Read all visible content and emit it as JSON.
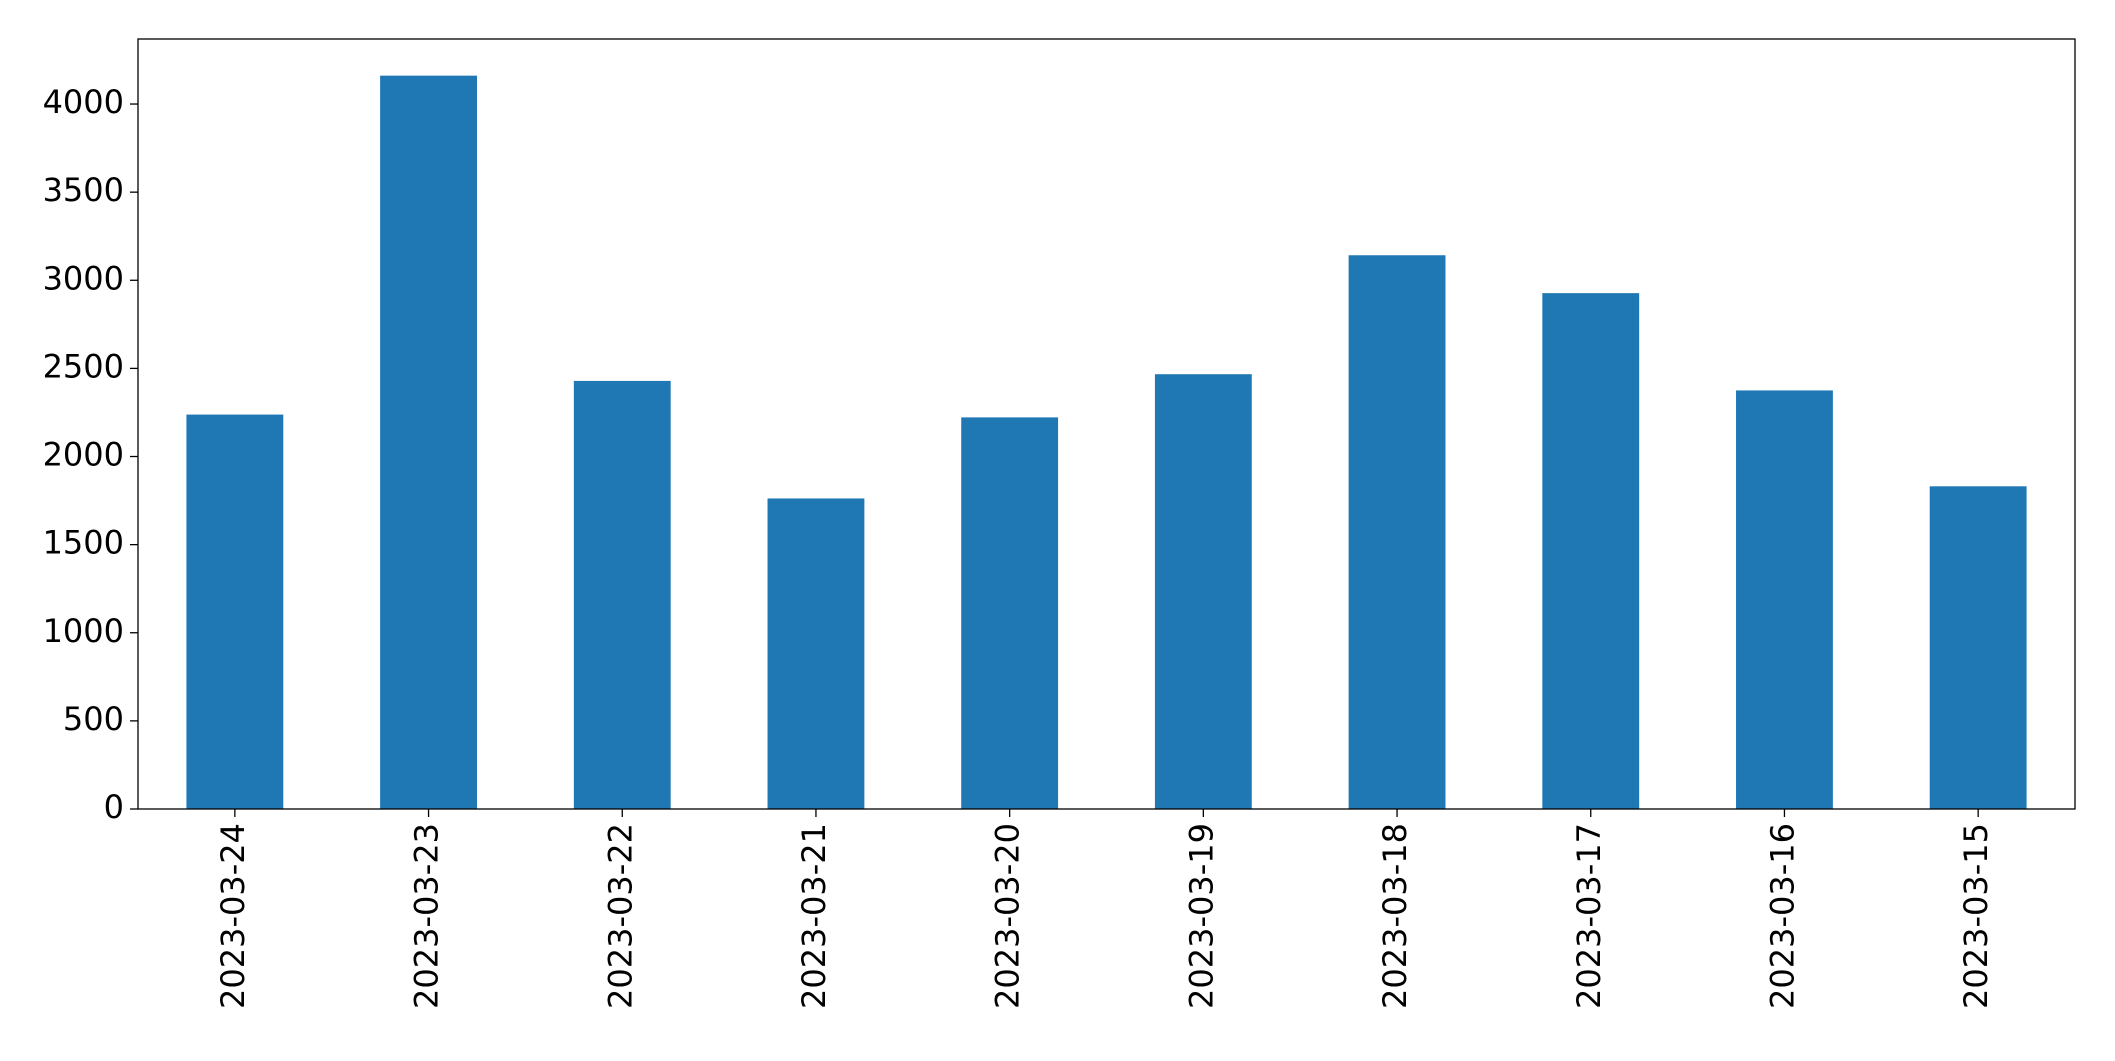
{
  "chart_data": {
    "type": "bar",
    "categories": [
      "2023-03-24",
      "2023-03-23",
      "2023-03-22",
      "2023-03-21",
      "2023-03-20",
      "2023-03-19",
      "2023-03-18",
      "2023-03-17",
      "2023-03-16",
      "2023-03-15"
    ],
    "values": [
      2238,
      4161,
      2429,
      1762,
      2222,
      2467,
      3142,
      2927,
      2375,
      1831
    ],
    "color": "#1f77b4",
    "ylim": [
      0,
      4369
    ],
    "yticks": [
      0,
      500,
      1000,
      1500,
      2000,
      2500,
      3000,
      3500,
      4000
    ],
    "grid": false
  }
}
